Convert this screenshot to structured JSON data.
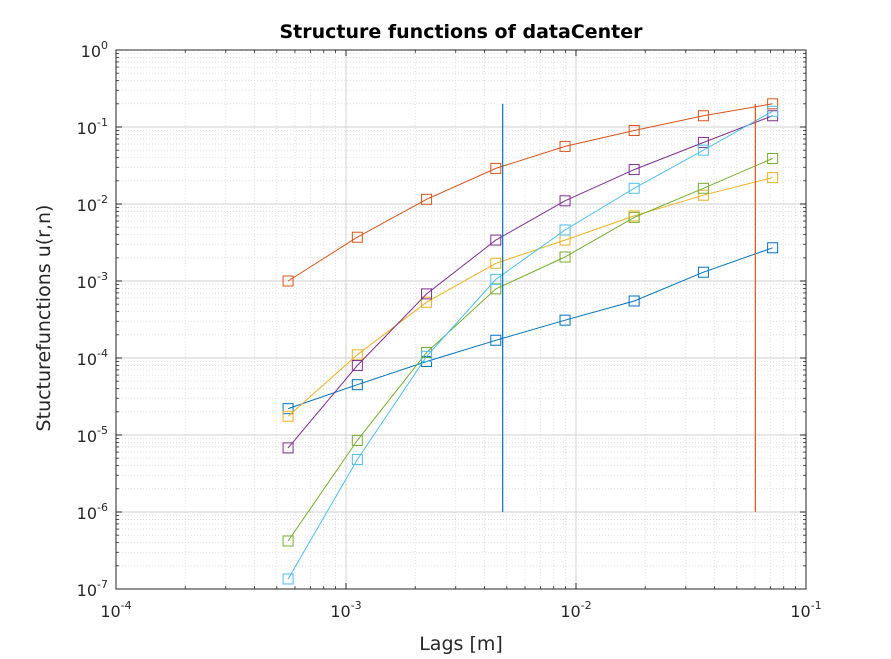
{
  "chart_data": {
    "type": "line",
    "title": "Structure functions  of dataCenter",
    "xlabel": "Lags [m]",
    "ylabel": "Stucturefunctions u(r,n)",
    "xscale": "log",
    "yscale": "log",
    "xlim": [
      0.0001,
      0.1
    ],
    "ylim": [
      1e-07,
      1
    ],
    "grid": true,
    "minor_grid": true,
    "x_ticks": [
      {
        "base": "10",
        "exp": "-4",
        "value": 0.0001
      },
      {
        "base": "10",
        "exp": "-3",
        "value": 0.001
      },
      {
        "base": "10",
        "exp": "-2",
        "value": 0.01
      },
      {
        "base": "10",
        "exp": "-1",
        "value": 0.1
      }
    ],
    "y_ticks": [
      {
        "base": "10",
        "exp": "-7",
        "value": 1e-07
      },
      {
        "base": "10",
        "exp": "-6",
        "value": 1e-06
      },
      {
        "base": "10",
        "exp": "-5",
        "value": 1e-05
      },
      {
        "base": "10",
        "exp": "-4",
        "value": 0.0001
      },
      {
        "base": "10",
        "exp": "-3",
        "value": 0.001
      },
      {
        "base": "10",
        "exp": "-2",
        "value": 0.01
      },
      {
        "base": "10",
        "exp": "-1",
        "value": 0.1
      },
      {
        "base": "10",
        "exp": "0",
        "value": 1
      }
    ],
    "x": [
      0.00056,
      0.00112,
      0.00224,
      0.00448,
      0.00896,
      0.0179,
      0.0358,
      0.0716
    ],
    "series": [
      {
        "color": "#0072BD",
        "marker": "square",
        "values": [
          2.2e-05,
          4.5e-05,
          9e-05,
          0.00017,
          0.00031,
          0.00055,
          0.0013,
          0.0027
        ]
      },
      {
        "color": "#D95319",
        "marker": "square",
        "values": [
          0.001,
          0.0037,
          0.0115,
          0.029,
          0.056,
          0.09,
          0.14,
          0.2
        ]
      },
      {
        "color": "#EDB120",
        "marker": "square",
        "values": [
          1.75e-05,
          0.00011,
          0.00053,
          0.0017,
          0.0034,
          0.007,
          0.013,
          0.022
        ]
      },
      {
        "color": "#7E2F8E",
        "marker": "square",
        "values": [
          6.8e-06,
          8e-05,
          0.00068,
          0.0034,
          0.011,
          0.028,
          0.063,
          0.14
        ]
      },
      {
        "color": "#77AC30",
        "marker": "square",
        "values": [
          4.2e-07,
          8.5e-06,
          0.000118,
          0.00079,
          0.00205,
          0.0067,
          0.016,
          0.039
        ]
      },
      {
        "color": "#4DBEEE",
        "marker": "square",
        "values": [
          1.35e-07,
          4.8e-06,
          0.000105,
          0.00105,
          0.0046,
          0.016,
          0.05,
          0.16
        ]
      }
    ],
    "vlines": [
      {
        "color": "#0072BD",
        "x": 0.0048,
        "y_range": [
          1e-06,
          0.2
        ]
      },
      {
        "color": "#D95319",
        "x": 0.0602,
        "y_range": [
          1e-06,
          0.2
        ]
      }
    ]
  }
}
